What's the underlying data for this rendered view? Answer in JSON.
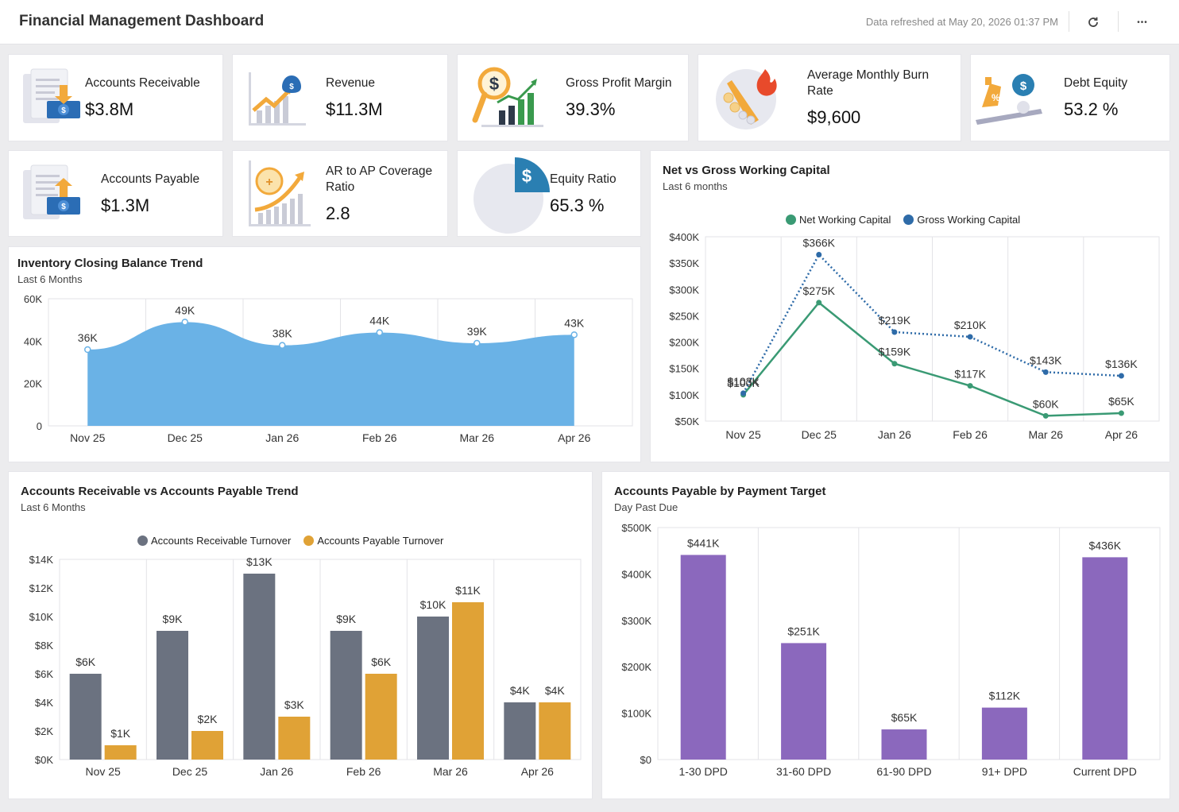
{
  "header": {
    "title": "Financial Management Dashboard",
    "refreshed": "Data refreshed at May 20, 2026 01:37 PM",
    "refresh_icon": "refresh-icon",
    "more_icon": "more-icon",
    "more_glyph": "•••"
  },
  "kpis": {
    "accounts_receivable": {
      "label": "Accounts Receivable",
      "value": "$3.8M",
      "icon": "invoice-dollar-icon"
    },
    "revenue": {
      "label": "Revenue",
      "value": "$11.3M",
      "icon": "revenue-growth-icon"
    },
    "gross_profit_margin": {
      "label": "Gross Profit Margin",
      "value": "39.3%",
      "icon": "profit-magnifier-icon"
    },
    "burn_rate": {
      "label": "Average Monthly Burn Rate",
      "value": "$9,600",
      "icon": "burning-coins-icon"
    },
    "debt_equity": {
      "label": "Debt Equity",
      "value": "53.2 %",
      "icon": "balance-scale-icon"
    },
    "accounts_payable": {
      "label": "Accounts Payable",
      "value": "$1.3M",
      "icon": "invoice-payment-icon"
    },
    "ar_ap_ratio": {
      "label": "AR to AP Coverage Ratio",
      "value": "2.8",
      "icon": "coverage-growth-icon"
    },
    "equity_ratio": {
      "label": "Equity Ratio",
      "value": "65.3 %",
      "icon": "pie-dollar-icon"
    }
  },
  "colors": {
    "inventory_area": "#6ab2e6",
    "net_wc": "#3a9a74",
    "gross_wc": "#2e6ba8",
    "ar_turnover": "#6b7280",
    "ap_turnover": "#e0a236",
    "payable_bar": "#8b68bd"
  },
  "chart_data": [
    {
      "id": "inventory",
      "type": "area",
      "title": "Inventory Closing Balance Trend",
      "subtitle": "Last 6 Months",
      "categories": [
        "Nov 25",
        "Dec 25",
        "Jan 26",
        "Feb 26",
        "Mar 26",
        "Apr 26"
      ],
      "values": [
        36000,
        49000,
        38000,
        44000,
        39000,
        43000
      ],
      "data_labels": [
        "36K",
        "49K",
        "38K",
        "44K",
        "39K",
        "43K"
      ],
      "yticks": [
        "0",
        "20K",
        "40K",
        "60K"
      ],
      "ylim": [
        0,
        60000
      ],
      "grid": true
    },
    {
      "id": "working_capital",
      "type": "line",
      "title": "Net vs Gross Working Capital",
      "subtitle": "Last 6 months",
      "categories": [
        "Nov 25",
        "Dec 25",
        "Jan 26",
        "Feb 26",
        "Mar 26",
        "Apr 26"
      ],
      "series": [
        {
          "name": "Net Working Capital",
          "values": [
            100,
            275,
            159,
            117,
            60,
            65
          ],
          "labels": [
            "$100K",
            "$275K",
            "$159K",
            "$117K",
            "$60K",
            "$65K"
          ]
        },
        {
          "name": "Gross Working Capital",
          "values": [
            103,
            366,
            219,
            210,
            143,
            136
          ],
          "labels": [
            "$103K",
            "$366K",
            "$219K",
            "$210K",
            "$143K",
            "$136K"
          ]
        }
      ],
      "yticks": [
        "$50K",
        "$100K",
        "$150K",
        "$200K",
        "$250K",
        "$300K",
        "$350K",
        "$400K"
      ],
      "ylim": [
        50,
        400
      ],
      "legend": "top",
      "grid": true
    },
    {
      "id": "ar_ap",
      "type": "bar",
      "title": "Accounts Receivable vs Accounts Payable Trend",
      "subtitle": "Last 6 Months",
      "categories": [
        "Nov 25",
        "Dec 25",
        "Jan 26",
        "Feb 26",
        "Mar 26",
        "Apr 26"
      ],
      "series": [
        {
          "name": "Accounts Receivable Turnover",
          "values": [
            6,
            9,
            13,
            9,
            10,
            4
          ],
          "labels": [
            "$6K",
            "$9K",
            "$13K",
            "$9K",
            "$10K",
            "$4K"
          ]
        },
        {
          "name": "Accounts Payable Turnover",
          "values": [
            1,
            2,
            3,
            6,
            11,
            4
          ],
          "labels": [
            "$1K",
            "$2K",
            "$3K",
            "$6K",
            "$11K",
            "$4K"
          ]
        }
      ],
      "yticks": [
        "$0K",
        "$2K",
        "$4K",
        "$6K",
        "$8K",
        "$10K",
        "$12K",
        "$14K"
      ],
      "ylim": [
        0,
        14
      ],
      "legend": "top",
      "grid": true
    },
    {
      "id": "payable_target",
      "type": "bar",
      "title": "Accounts Payable by Payment Target",
      "subtitle": "Day Past Due",
      "categories": [
        "1-30 DPD",
        "31-60 DPD",
        "61-90 DPD",
        "91+ DPD",
        "Current DPD"
      ],
      "values": [
        441,
        251,
        65,
        112,
        436
      ],
      "data_labels": [
        "$441K",
        "$251K",
        "$65K",
        "$112K",
        "$436K"
      ],
      "yticks": [
        "$0",
        "$100K",
        "$200K",
        "$300K",
        "$400K",
        "$500K"
      ],
      "ylim": [
        0,
        500
      ],
      "grid": true
    }
  ]
}
